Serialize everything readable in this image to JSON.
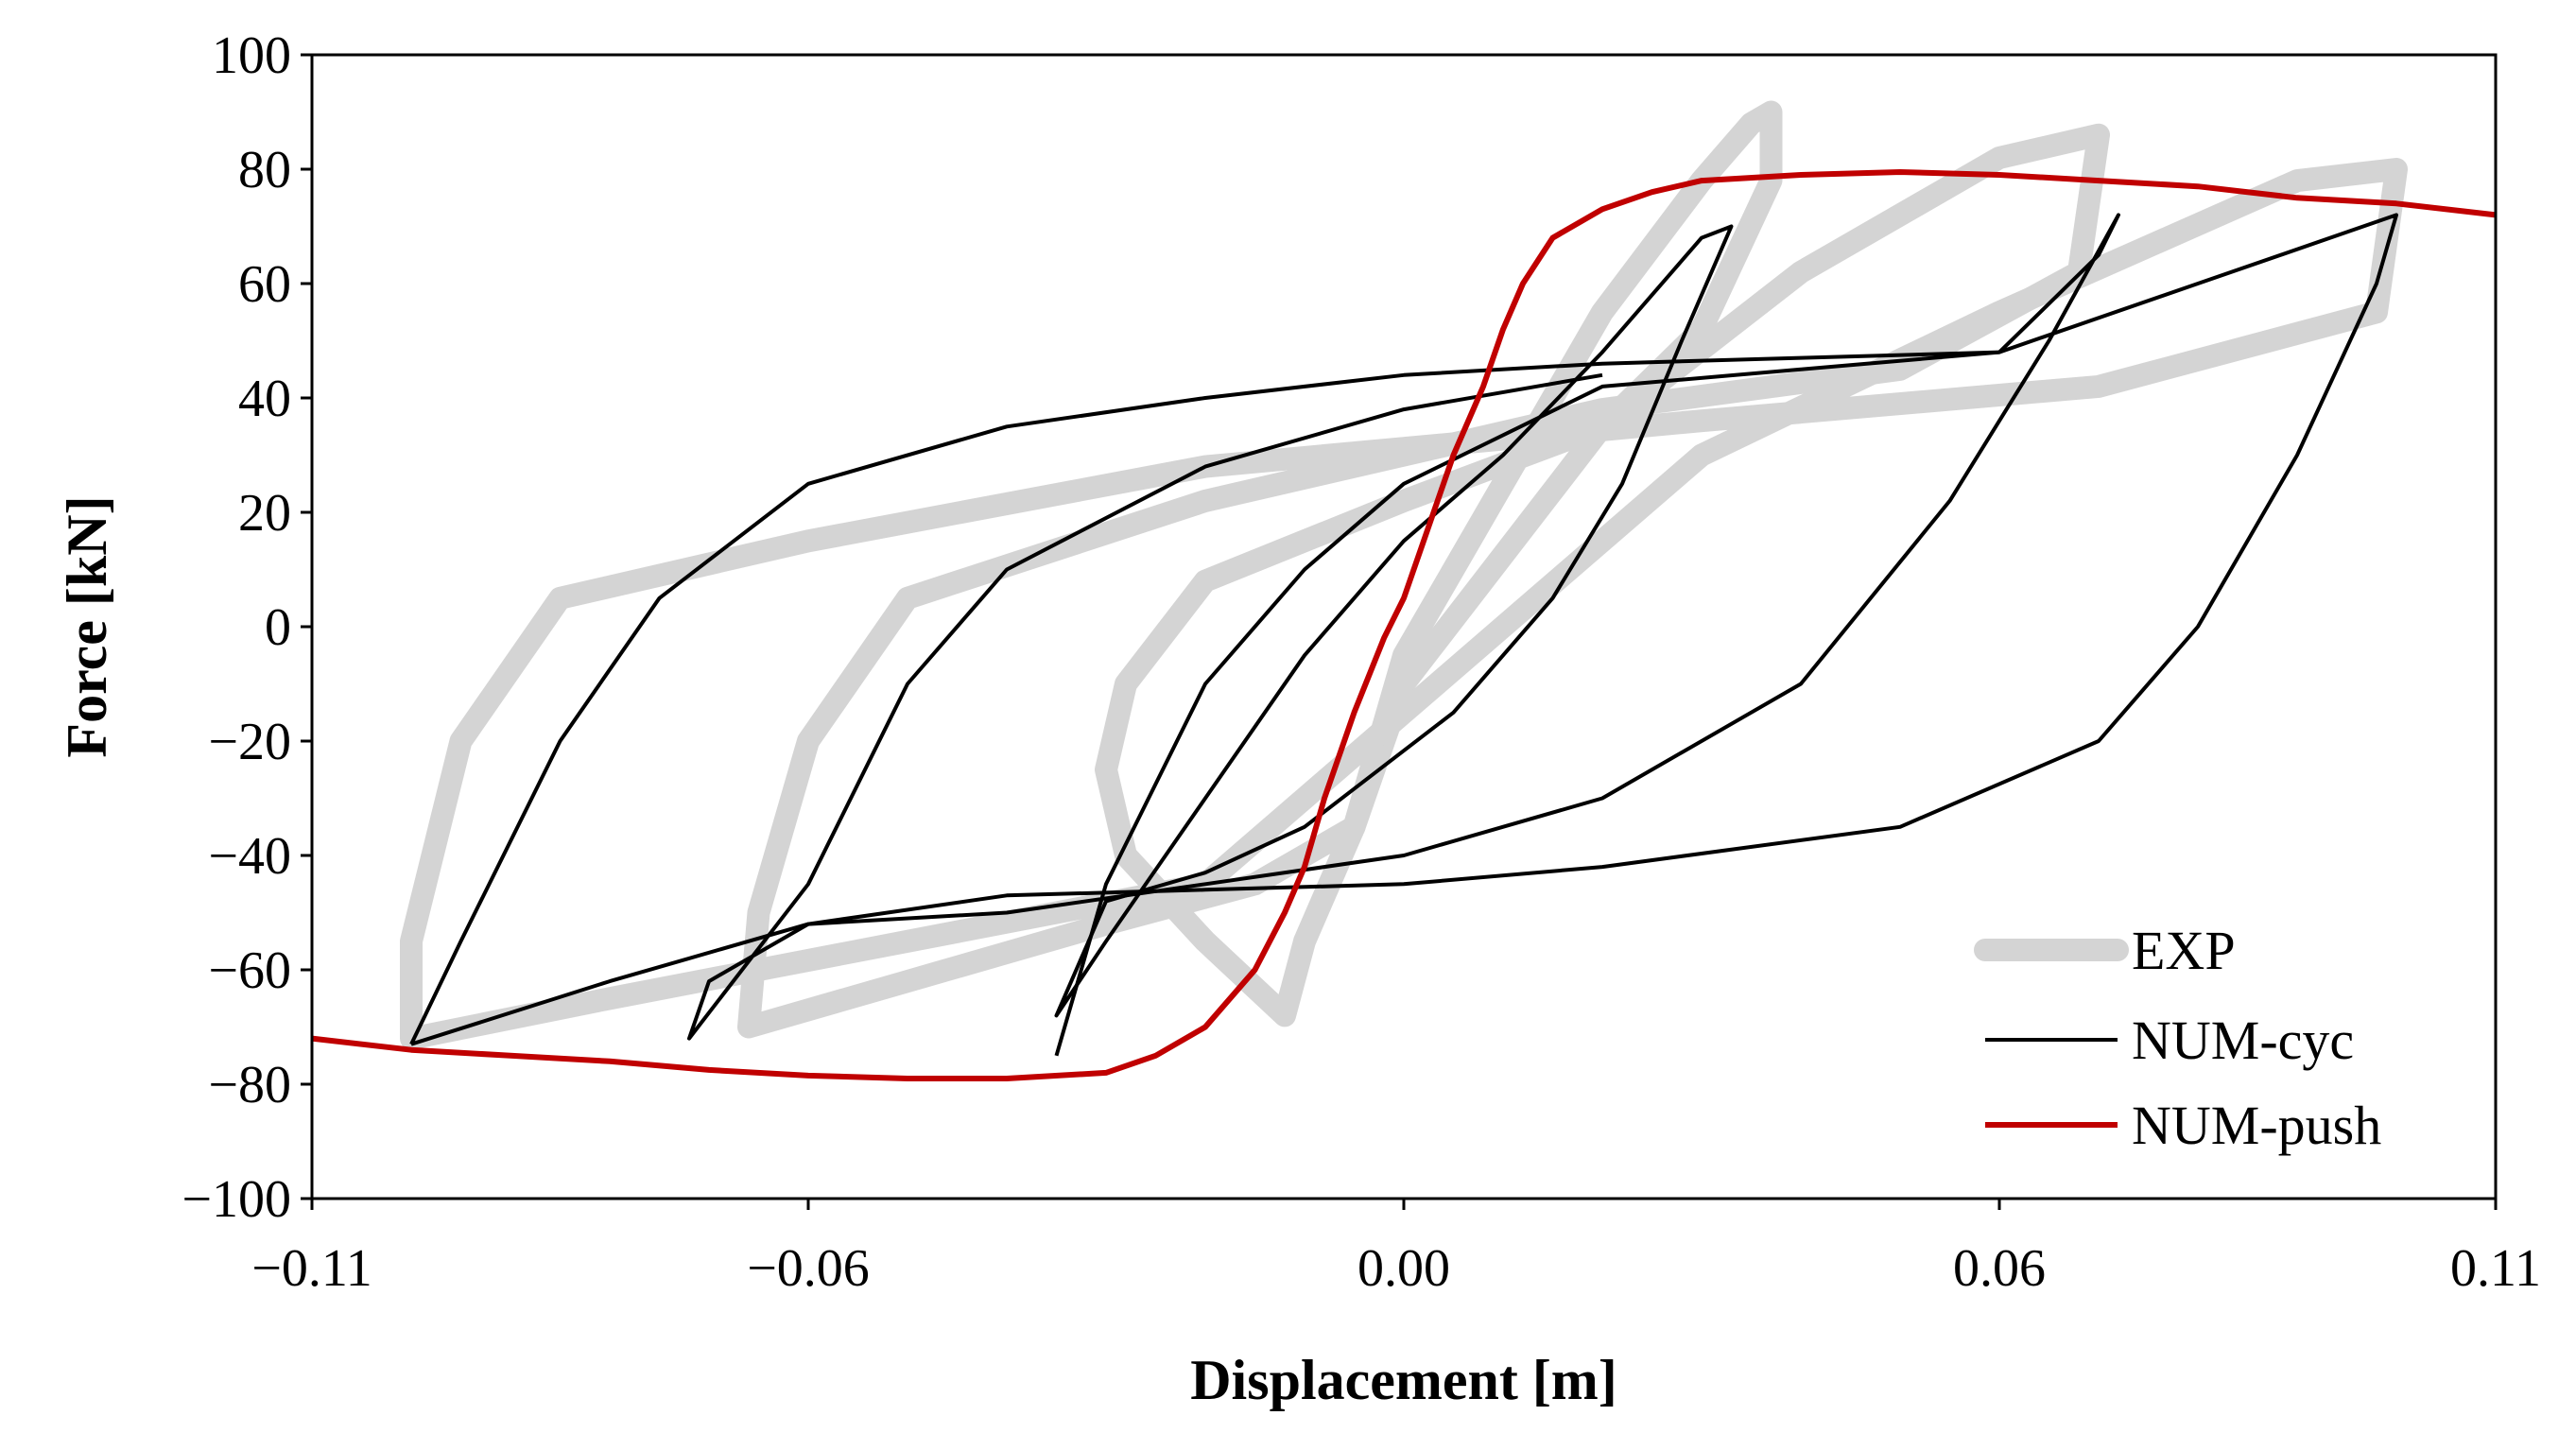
{
  "chart_data": {
    "type": "line",
    "title": "",
    "xlabel": "Displacement [m]",
    "ylabel": "Force [kN]",
    "xlim": [
      -0.11,
      0.11
    ],
    "ylim": [
      -100,
      100
    ],
    "xticks": [
      -0.11,
      -0.06,
      0.0,
      0.06,
      0.11
    ],
    "xtick_labels": [
      "−0.11",
      "−0.06",
      "0.00",
      "0.06",
      "0.11"
    ],
    "yticks": [
      100,
      80,
      60,
      40,
      20,
      0,
      -20,
      -40,
      -60,
      -80,
      -100
    ],
    "ytick_labels": [
      "100",
      "80",
      "60",
      "40",
      "20",
      "0",
      "−20",
      "−40",
      "−60",
      "−80",
      "−100"
    ],
    "grid": false,
    "legend_position": "bottom-right",
    "colors": {
      "EXP": "#d4d4d4",
      "NUM-cyc": "#000000",
      "NUM-push": "#c00000"
    },
    "series": [
      {
        "name": "EXP",
        "loops": [
          [
            [
              0.0,
              -5
            ],
            [
              0.01,
              25
            ],
            [
              0.02,
              55
            ],
            [
              0.03,
              78
            ],
            [
              0.035,
              88
            ],
            [
              0.037,
              90
            ],
            [
              0.037,
              78
            ],
            [
              0.03,
              52
            ],
            [
              0.02,
              35
            ],
            [
              0.0,
              22
            ],
            [
              -0.02,
              8
            ],
            [
              -0.028,
              -10
            ],
            [
              -0.03,
              -25
            ],
            [
              -0.028,
              -40
            ],
            [
              -0.02,
              -55
            ],
            [
              -0.012,
              -68
            ],
            [
              -0.01,
              -55
            ],
            [
              -0.005,
              -35
            ],
            [
              0.0,
              -5
            ]
          ],
          [
            [
              0.0,
              -10
            ],
            [
              0.02,
              35
            ],
            [
              0.04,
              62
            ],
            [
              0.06,
              82
            ],
            [
              0.07,
              86
            ],
            [
              0.068,
              62
            ],
            [
              0.05,
              45
            ],
            [
              0.02,
              38
            ],
            [
              -0.02,
              22
            ],
            [
              -0.05,
              5
            ],
            [
              -0.06,
              -20
            ],
            [
              -0.065,
              -50
            ],
            [
              -0.066,
              -70
            ],
            [
              -0.05,
              -62
            ],
            [
              -0.03,
              -52
            ],
            [
              -0.015,
              -45
            ],
            [
              -0.005,
              -35
            ],
            [
              0.0,
              -10
            ]
          ],
          [
            [
              0.0,
              -15
            ],
            [
              0.03,
              30
            ],
            [
              0.06,
              55
            ],
            [
              0.09,
              78
            ],
            [
              0.1,
              80
            ],
            [
              0.098,
              55
            ],
            [
              0.07,
              42
            ],
            [
              0.03,
              36
            ],
            [
              -0.02,
              28
            ],
            [
              -0.06,
              15
            ],
            [
              -0.085,
              5
            ],
            [
              -0.095,
              -20
            ],
            [
              -0.1,
              -55
            ],
            [
              -0.1,
              -72
            ],
            [
              -0.08,
              -65
            ],
            [
              -0.05,
              -55
            ],
            [
              -0.02,
              -45
            ],
            [
              0.0,
              -15
            ]
          ]
        ]
      },
      {
        "name": "NUM-cyc",
        "loops": [
          [
            [
              -0.02,
              -30
            ],
            [
              -0.01,
              -5
            ],
            [
              0.0,
              15
            ],
            [
              0.01,
              30
            ],
            [
              0.02,
              48
            ],
            [
              0.03,
              68
            ],
            [
              0.033,
              70
            ],
            [
              0.028,
              50
            ],
            [
              0.022,
              25
            ],
            [
              0.015,
              5
            ],
            [
              0.005,
              -15
            ],
            [
              -0.01,
              -35
            ],
            [
              -0.02,
              -43
            ],
            [
              -0.03,
              -48
            ],
            [
              -0.035,
              -68
            ],
            [
              -0.03,
              -55
            ],
            [
              -0.02,
              -30
            ]
          ],
          [
            [
              -0.035,
              -75
            ],
            [
              -0.03,
              -45
            ],
            [
              -0.02,
              -10
            ],
            [
              -0.01,
              10
            ],
            [
              0.0,
              25
            ],
            [
              0.02,
              42
            ],
            [
              0.04,
              45
            ],
            [
              0.06,
              48
            ],
            [
              0.07,
              65
            ],
            [
              0.072,
              72
            ],
            [
              0.065,
              50
            ],
            [
              0.055,
              22
            ],
            [
              0.04,
              -10
            ],
            [
              0.02,
              -30
            ],
            [
              0.0,
              -40
            ],
            [
              -0.02,
              -45
            ],
            [
              -0.04,
              -50
            ],
            [
              -0.06,
              -52
            ],
            [
              -0.07,
              -62
            ],
            [
              -0.072,
              -72
            ],
            [
              -0.06,
              -45
            ],
            [
              -0.05,
              -10
            ],
            [
              -0.04,
              10
            ],
            [
              -0.02,
              28
            ],
            [
              0.0,
              38
            ],
            [
              0.02,
              44
            ]
          ],
          [
            [
              -0.1,
              -73
            ],
            [
              -0.095,
              -55
            ],
            [
              -0.085,
              -20
            ],
            [
              -0.075,
              5
            ],
            [
              -0.06,
              25
            ],
            [
              -0.04,
              35
            ],
            [
              -0.02,
              40
            ],
            [
              0.0,
              44
            ],
            [
              0.02,
              46
            ],
            [
              0.04,
              47
            ],
            [
              0.06,
              48
            ],
            [
              0.08,
              60
            ],
            [
              0.1,
              72
            ],
            [
              0.098,
              60
            ],
            [
              0.09,
              30
            ],
            [
              0.08,
              0
            ],
            [
              0.07,
              -20
            ],
            [
              0.05,
              -35
            ],
            [
              0.02,
              -42
            ],
            [
              0.0,
              -45
            ],
            [
              -0.02,
              -46
            ],
            [
              -0.04,
              -47
            ],
            [
              -0.06,
              -52
            ],
            [
              -0.08,
              -62
            ],
            [
              -0.1,
              -73
            ]
          ]
        ]
      },
      {
        "name": "NUM-push",
        "x": [
          -0.11,
          -0.1,
          -0.09,
          -0.08,
          -0.07,
          -0.06,
          -0.05,
          -0.04,
          -0.03,
          -0.025,
          -0.02,
          -0.015,
          -0.012,
          -0.01,
          -0.008,
          -0.005,
          -0.002,
          0.0,
          0.002,
          0.005,
          0.008,
          0.01,
          0.012,
          0.015,
          0.02,
          0.025,
          0.03,
          0.04,
          0.05,
          0.06,
          0.07,
          0.08,
          0.09,
          0.1,
          0.11
        ],
        "y": [
          -72,
          -74,
          -75,
          -76,
          -77.5,
          -78.5,
          -79,
          -79,
          -78,
          -75,
          -70,
          -60,
          -50,
          -42,
          -30,
          -15,
          -2,
          5,
          15,
          30,
          42,
          52,
          60,
          68,
          73,
          76,
          78,
          79,
          79.5,
          79,
          78,
          77,
          75,
          74,
          72
        ]
      }
    ]
  }
}
